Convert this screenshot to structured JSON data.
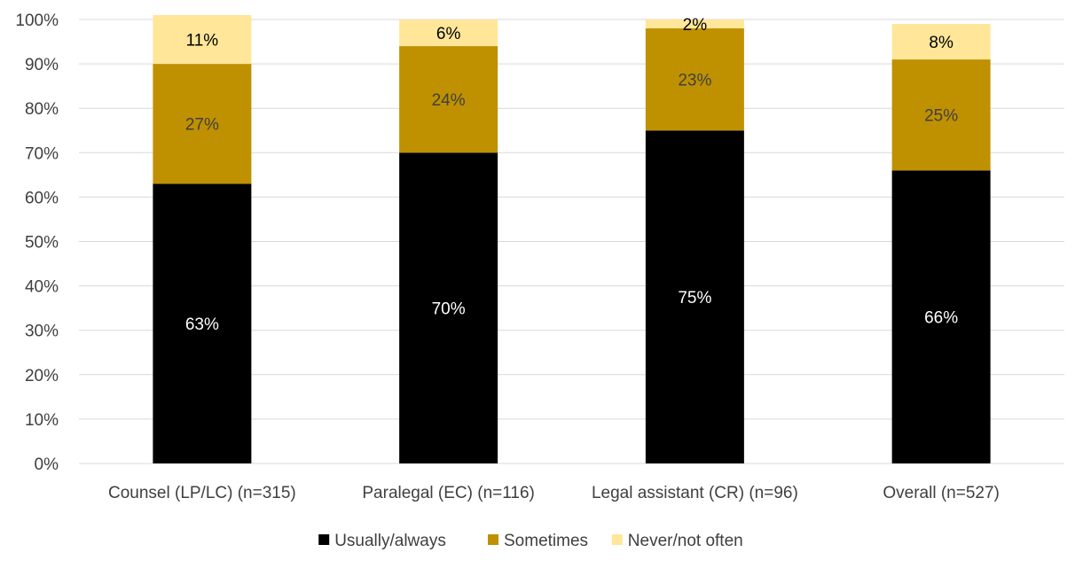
{
  "chart_data": {
    "type": "bar",
    "stacked": true,
    "categories": [
      "Counsel (LP/LC) (n=315)",
      "Paralegal (EC) (n=116)",
      "Legal assistant (CR) (n=96)",
      "Overall (n=527)"
    ],
    "series": [
      {
        "name": "Usually/always",
        "values": [
          63,
          70,
          75,
          66
        ],
        "labels": [
          "63%",
          "70%",
          "75%",
          "66%"
        ],
        "color": "#000000",
        "label_color": "#ffffff"
      },
      {
        "name": "Sometimes",
        "values": [
          27,
          24,
          23,
          25
        ],
        "labels": [
          "27%",
          "24%",
          "23%",
          "25%"
        ],
        "color": "#bf9000",
        "label_color": "#404040"
      },
      {
        "name": "Never/not often",
        "values": [
          11,
          6,
          2,
          8
        ],
        "labels": [
          "11%",
          "6%",
          "2%",
          "8%"
        ],
        "color": "#ffe699",
        "label_color": "#000000"
      }
    ],
    "y_ticks": [
      "0%",
      "10%",
      "20%",
      "30%",
      "40%",
      "50%",
      "60%",
      "70%",
      "80%",
      "90%",
      "100%"
    ],
    "ylim": [
      0,
      100
    ],
    "grid": true,
    "legend_position": "bottom",
    "gridline_color": "#d9d9d9"
  }
}
